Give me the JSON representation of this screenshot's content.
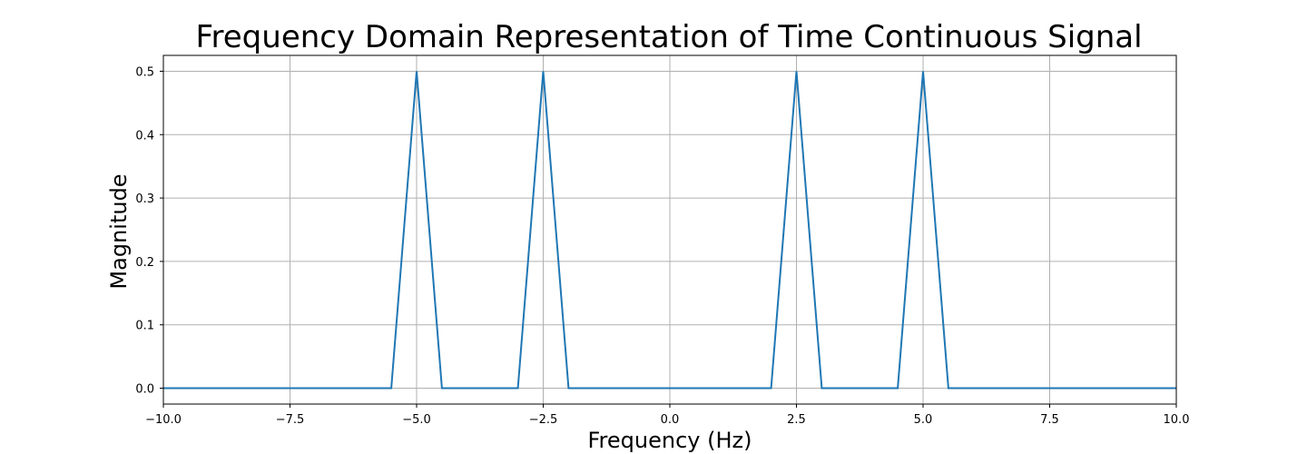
{
  "chart_data": {
    "type": "line",
    "title": "Frequency Domain Representation of Time Continuous Signal",
    "xlabel": "Frequency (Hz)",
    "ylabel": "Magnitude",
    "xlim": [
      -10,
      10
    ],
    "ylim": [
      -0.025,
      0.525
    ],
    "grid": true,
    "x_ticks": [
      -10.0,
      -7.5,
      -5.0,
      -2.5,
      0.0,
      2.5,
      5.0,
      7.5,
      10.0
    ],
    "x_tick_labels": [
      "−10.0",
      "−7.5",
      "−5.0",
      "−2.5",
      "0.0",
      "2.5",
      "5.0",
      "7.5",
      "10.0"
    ],
    "y_ticks": [
      0.0,
      0.1,
      0.2,
      0.3,
      0.4,
      0.5
    ],
    "y_tick_labels": [
      "0.0",
      "0.1",
      "0.2",
      "0.3",
      "0.4",
      "0.5"
    ],
    "series": [
      {
        "color": "#1f77b4",
        "x": [
          -10,
          -5.5,
          -5.0,
          -4.5,
          -3.0,
          -2.5,
          -2.0,
          2.0,
          2.5,
          3.0,
          4.5,
          5.0,
          5.5,
          10
        ],
        "y": [
          0,
          0,
          0.5,
          0,
          0,
          0.5,
          0,
          0,
          0.5,
          0,
          0,
          0.5,
          0,
          0
        ]
      }
    ]
  }
}
